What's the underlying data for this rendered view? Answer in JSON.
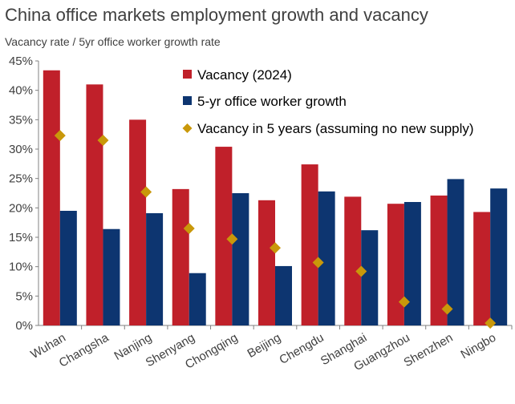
{
  "chart_data": {
    "type": "bar",
    "title": "China office markets employment growth and vacancy",
    "subtitle": "Vacancy rate / 5yr office worker growth rate",
    "categories": [
      "Wuhan",
      "Changsha",
      "Nanjing",
      "Shenyang",
      "Chongqing",
      "Beijing",
      "Chengdu",
      "Shanghai",
      "Guangzhou",
      "Shenzhen",
      "Ningbo"
    ],
    "series": [
      {
        "name": "Vacancy (2024)",
        "kind": "bar",
        "color": "#C0202A",
        "values": [
          43.4,
          41.0,
          35.0,
          23.2,
          30.4,
          21.3,
          27.4,
          21.9,
          20.7,
          22.1,
          19.3
        ]
      },
      {
        "name": "5-yr office worker growth",
        "kind": "bar",
        "color": "#0D3570",
        "values": [
          19.5,
          16.4,
          19.1,
          8.9,
          22.5,
          10.1,
          22.8,
          16.2,
          21.0,
          24.9,
          23.3
        ]
      },
      {
        "name": "Vacancy in 5 years (assuming no new supply)",
        "kind": "marker",
        "color": "#C9980A",
        "values": [
          32.3,
          31.5,
          22.7,
          16.5,
          14.7,
          13.2,
          10.7,
          9.2,
          4.0,
          2.8,
          0.4
        ]
      }
    ],
    "y_ticks": [
      "0%",
      "5%",
      "10%",
      "15%",
      "20%",
      "25%",
      "30%",
      "35%",
      "40%",
      "45%"
    ],
    "ylim": [
      0,
      45
    ],
    "grid": false,
    "legend_position": "top-right"
  }
}
